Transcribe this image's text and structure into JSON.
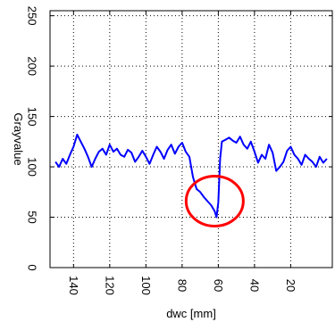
{
  "chart_data": {
    "type": "line",
    "xlabel": "dwc [mm]",
    "ylabel": "Grayvalue",
    "xlim": [
      153,
      -3
    ],
    "ylim": [
      0,
      255
    ],
    "x_reversed": true,
    "grid": true,
    "grid_style": "dotted",
    "xticks": [
      140,
      120,
      100,
      80,
      60,
      40,
      20
    ],
    "yticks": [
      0,
      50,
      100,
      150,
      200,
      250
    ],
    "series": [
      {
        "color": "#0000ff",
        "x": [
          150,
          148,
          146,
          144,
          142,
          140,
          138,
          136,
          134,
          132,
          130,
          128,
          126,
          124,
          122,
          120,
          118,
          116,
          114,
          112,
          110,
          108,
          106,
          104,
          102,
          100,
          98,
          96,
          94,
          92,
          90,
          88,
          86,
          84,
          82,
          80,
          78,
          76,
          74,
          72,
          70,
          68,
          66,
          64,
          62,
          61,
          60,
          59,
          58,
          56,
          54,
          52,
          50,
          48,
          46,
          44,
          42,
          40,
          38,
          36,
          34,
          32,
          30,
          28,
          26,
          24,
          22,
          20,
          18,
          16,
          14,
          12,
          10,
          8,
          6,
          4,
          2,
          0
        ],
        "y": [
          105,
          100,
          108,
          103,
          112,
          120,
          132,
          125,
          118,
          110,
          100,
          108,
          115,
          118,
          112,
          122,
          115,
          118,
          112,
          110,
          117,
          114,
          105,
          110,
          116,
          110,
          103,
          112,
          120,
          115,
          108,
          117,
          122,
          113,
          120,
          124,
          115,
          110,
          90,
          78,
          75,
          70,
          66,
          62,
          56,
          50,
          65,
          108,
          125,
          127,
          129,
          126,
          124,
          130,
          122,
          118,
          125,
          115,
          104,
          112,
          108,
          122,
          114,
          96,
          100,
          105,
          116,
          120,
          112,
          108,
          102,
          112,
          108,
          105,
          100,
          110,
          104,
          108
        ]
      }
    ],
    "annotations": [
      {
        "shape": "ellipse",
        "color": "#ff0000",
        "center": [
          62,
          66
        ],
        "note": ""
      }
    ]
  }
}
